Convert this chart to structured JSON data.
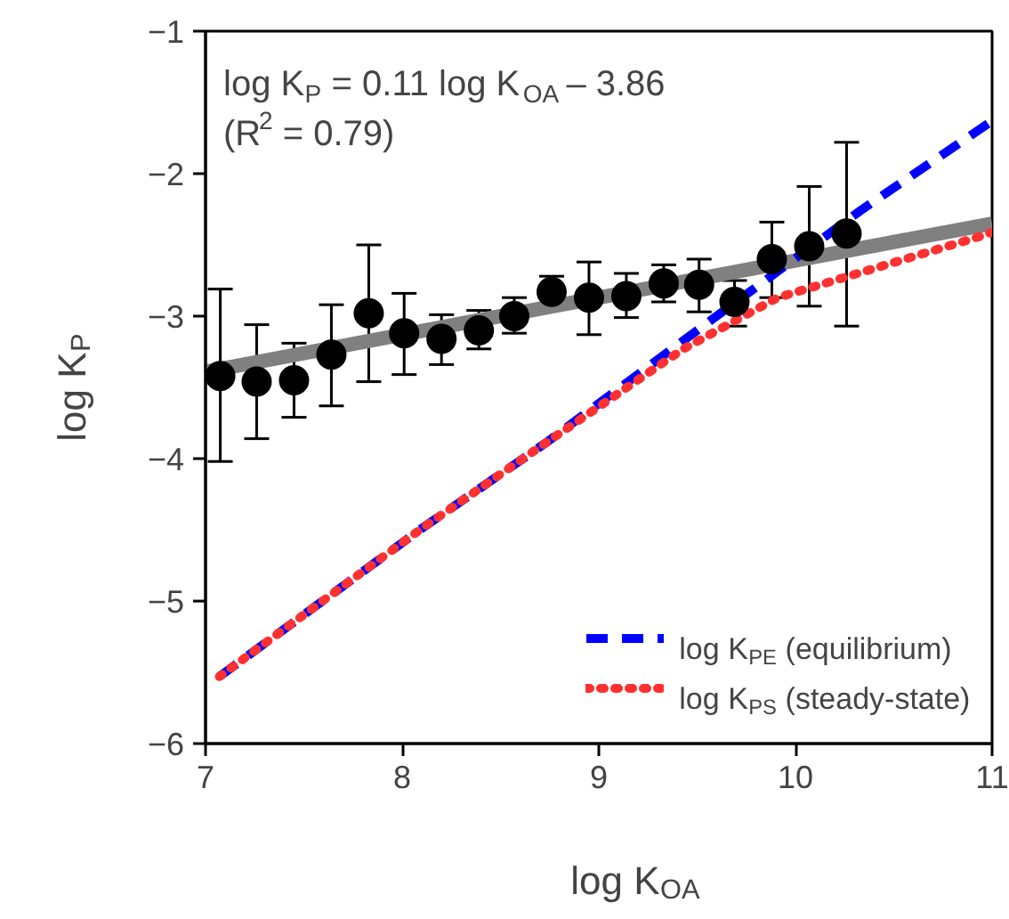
{
  "chart_data": {
    "type": "scatter",
    "xlabel": "log K$_{OA}$",
    "ylabel": "log K$_{P}$",
    "xlim": [
      7,
      11
    ],
    "ylim": [
      -6,
      -1
    ],
    "xticks": [
      7,
      8,
      9,
      10,
      11
    ],
    "yticks": [
      -6,
      -5,
      -4,
      -3,
      -2,
      -1
    ],
    "grid": false,
    "legend": "bottom right",
    "annotations": [
      "log K$_{P}$ = 0.11 log K$_{OA}$ – 3.86",
      "(R$^{2}$ = 0.79)"
    ],
    "series": [
      {
        "type": "line",
        "color": "#808080",
        "line_style": "solid",
        "x": [
          7,
          11
        ],
        "values": [
          -3.39,
          -2.35
        ]
      },
      {
        "type": "line",
        "name": "log K$_{PE}$ (equilibrium)",
        "color": "#0000ff",
        "line_style": "dashed",
        "x": [
          7.07,
          8.1,
          8.73,
          9.52,
          10.33,
          11
        ],
        "values": [
          -5.53,
          -4.49,
          -3.89,
          -3.08,
          -2.26,
          -1.63
        ]
      },
      {
        "type": "line",
        "name": "log K$_{PS}$ (steady-state)",
        "color": "#ff3030",
        "line_style": "dotted",
        "x": [
          7.07,
          8.1,
          8.73,
          9.43,
          9.91,
          10.94,
          11
        ],
        "values": [
          -5.53,
          -4.49,
          -3.89,
          -3.23,
          -2.87,
          -2.44,
          -2.41
        ]
      },
      {
        "color": "#000000",
        "marker": "circle",
        "x": [
          7.075,
          7.26,
          7.45,
          7.64,
          7.83,
          8.01,
          8.2,
          8.39,
          8.57,
          8.76,
          8.95,
          9.14,
          9.33,
          9.51,
          9.69,
          9.88,
          10.07,
          10.26
        ],
        "values": [
          -3.42,
          -3.46,
          -3.45,
          -3.27,
          -2.98,
          -3.12,
          -3.16,
          -3.1,
          -3.0,
          -2.83,
          -2.87,
          -2.86,
          -2.77,
          -2.78,
          -2.9,
          -2.6,
          -2.51,
          -2.42
        ],
        "errors": [
          [
            -4.02,
            -2.81
          ],
          [
            -3.86,
            -3.06
          ],
          [
            -3.71,
            -3.19
          ],
          [
            -3.63,
            -2.92
          ],
          [
            -3.46,
            -2.5
          ],
          [
            -3.41,
            -2.84
          ],
          [
            -3.34,
            -2.99
          ],
          [
            -3.23,
            -2.96
          ],
          [
            -3.12,
            -2.87
          ],
          [
            -2.94,
            -2.72
          ],
          [
            -3.13,
            -2.62
          ],
          [
            -3.01,
            -2.7
          ],
          [
            -2.9,
            -2.64
          ],
          [
            -2.97,
            -2.6
          ],
          [
            -3.07,
            -2.75
          ],
          [
            -2.87,
            -2.34
          ],
          [
            -2.93,
            -2.09
          ],
          [
            -3.07,
            -1.78
          ]
        ]
      }
    ]
  }
}
